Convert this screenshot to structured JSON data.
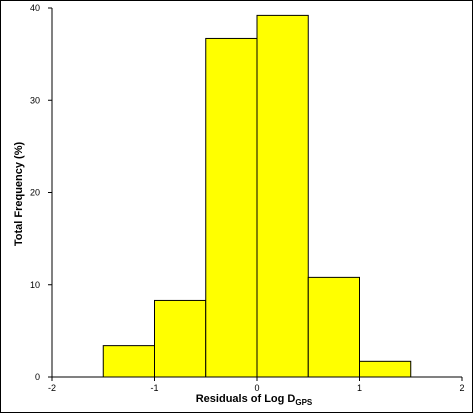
{
  "chart_data": {
    "type": "bar",
    "bin_edges": [
      -1.5,
      -1.0,
      -0.5,
      0.0,
      0.5,
      1.0,
      1.5
    ],
    "values": [
      3.4,
      8.3,
      36.7,
      39.2,
      10.8,
      1.7
    ],
    "xlim": [
      -2,
      2
    ],
    "ylim": [
      0,
      40
    ],
    "xticks": [
      -2,
      -1,
      0,
      1,
      2
    ],
    "yticks": [
      0,
      10,
      20,
      30,
      40
    ],
    "ylabel": "Total Frequency (%)",
    "xlabel_main": "Residuals of Log D",
    "xlabel_sub": "GPS",
    "grid": false,
    "colors": {
      "bar_fill": "#ffff00",
      "bar_stroke": "#000000",
      "axis": "#000000"
    }
  }
}
